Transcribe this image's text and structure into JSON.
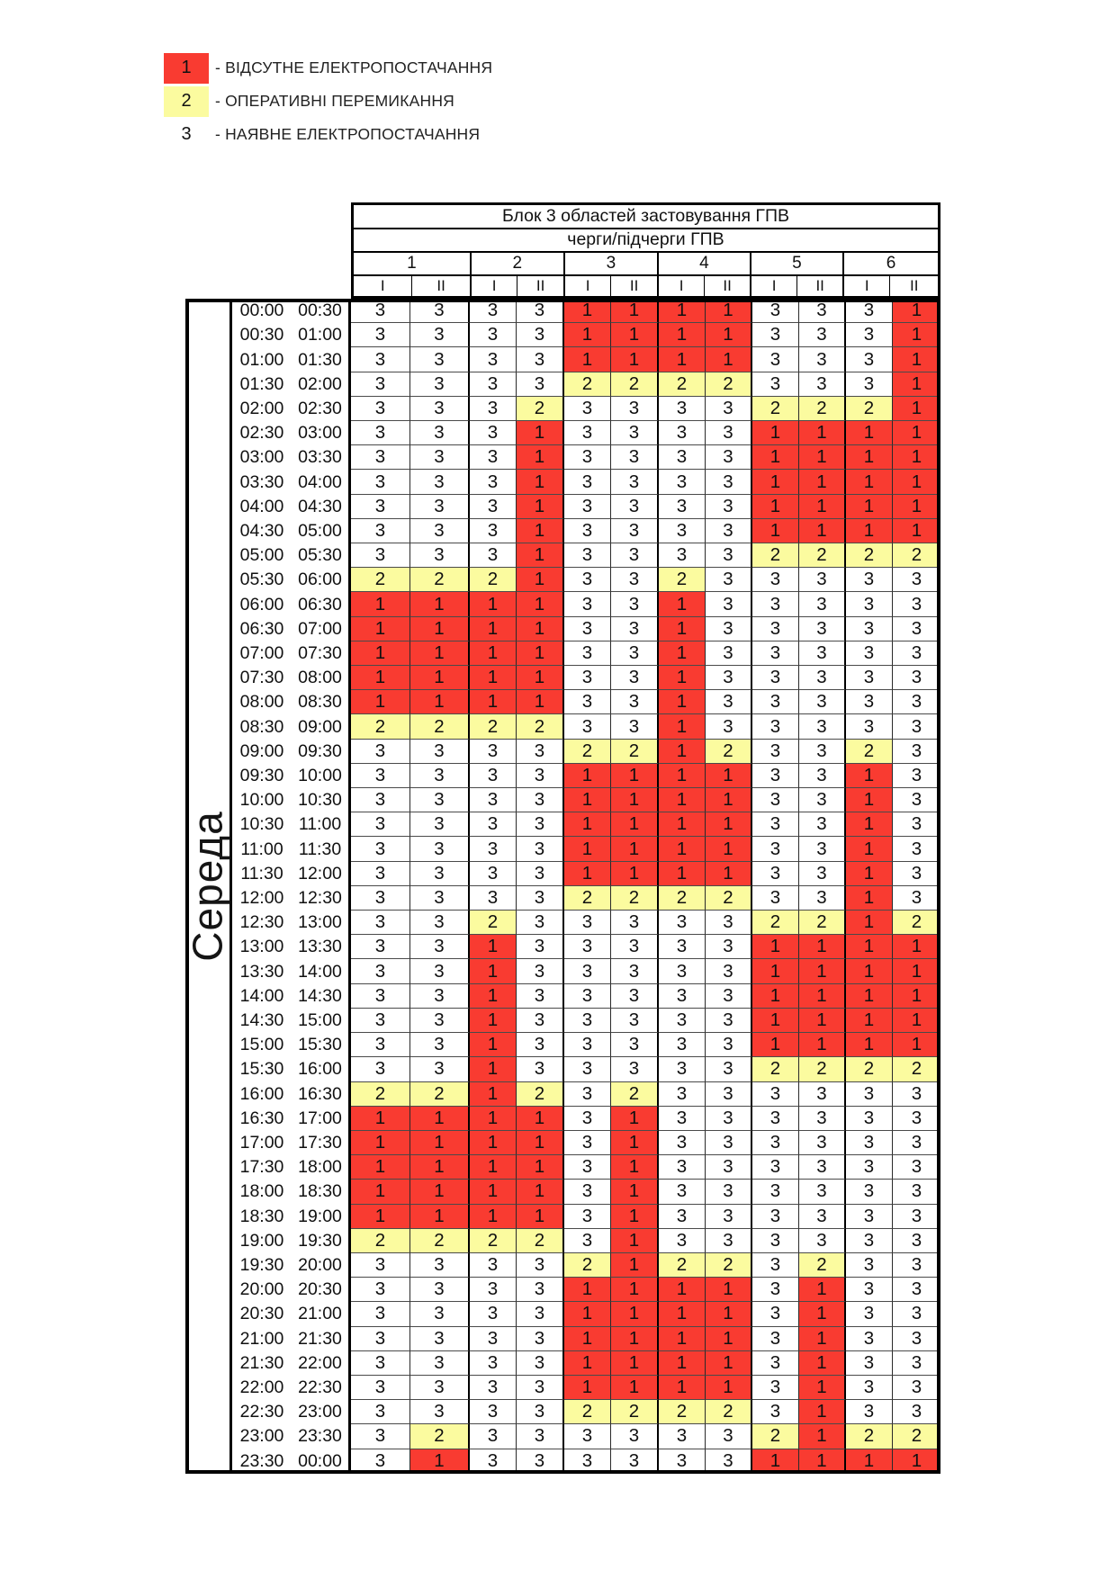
{
  "legend": {
    "items": [
      {
        "code": "1",
        "label": "- ВІДСУТНЕ ЕЛЕКТРОПОСТАЧАННЯ",
        "color": "#f93b31"
      },
      {
        "code": "2",
        "label": "- ОПЕРАТИВНІ ПЕРЕМИКАННЯ",
        "color": "#fbfb9f"
      },
      {
        "code": "3",
        "label": "- НАЯВНЕ ЕЛЕКТРОПОСТАЧАННЯ",
        "color": "#ffffff"
      }
    ]
  },
  "table": {
    "title": "Блок 3 областей застовування ГПВ",
    "subtitle": "черги/підчерги ГПВ",
    "day": "Середа",
    "groups": [
      "1",
      "2",
      "3",
      "4",
      "5",
      "6"
    ],
    "subcolumns": [
      "I",
      "II"
    ],
    "status_colors": {
      "1": "#f93b31",
      "2": "#fbfb9f",
      "3": "#ffffff"
    },
    "rows": [
      {
        "start": "00:00",
        "end": "00:30",
        "values": [
          3,
          3,
          3,
          3,
          1,
          1,
          1,
          1,
          3,
          3,
          3,
          1
        ]
      },
      {
        "start": "00:30",
        "end": "01:00",
        "values": [
          3,
          3,
          3,
          3,
          1,
          1,
          1,
          1,
          3,
          3,
          3,
          1
        ]
      },
      {
        "start": "01:00",
        "end": "01:30",
        "values": [
          3,
          3,
          3,
          3,
          1,
          1,
          1,
          1,
          3,
          3,
          3,
          1
        ]
      },
      {
        "start": "01:30",
        "end": "02:00",
        "values": [
          3,
          3,
          3,
          3,
          2,
          2,
          2,
          2,
          3,
          3,
          3,
          1
        ]
      },
      {
        "start": "02:00",
        "end": "02:30",
        "values": [
          3,
          3,
          3,
          2,
          3,
          3,
          3,
          3,
          2,
          2,
          2,
          1
        ]
      },
      {
        "start": "02:30",
        "end": "03:00",
        "values": [
          3,
          3,
          3,
          1,
          3,
          3,
          3,
          3,
          1,
          1,
          1,
          1
        ]
      },
      {
        "start": "03:00",
        "end": "03:30",
        "values": [
          3,
          3,
          3,
          1,
          3,
          3,
          3,
          3,
          1,
          1,
          1,
          1
        ]
      },
      {
        "start": "03:30",
        "end": "04:00",
        "values": [
          3,
          3,
          3,
          1,
          3,
          3,
          3,
          3,
          1,
          1,
          1,
          1
        ]
      },
      {
        "start": "04:00",
        "end": "04:30",
        "values": [
          3,
          3,
          3,
          1,
          3,
          3,
          3,
          3,
          1,
          1,
          1,
          1
        ]
      },
      {
        "start": "04:30",
        "end": "05:00",
        "values": [
          3,
          3,
          3,
          1,
          3,
          3,
          3,
          3,
          1,
          1,
          1,
          1
        ]
      },
      {
        "start": "05:00",
        "end": "05:30",
        "values": [
          3,
          3,
          3,
          1,
          3,
          3,
          3,
          3,
          2,
          2,
          2,
          2
        ]
      },
      {
        "start": "05:30",
        "end": "06:00",
        "values": [
          2,
          2,
          2,
          1,
          3,
          3,
          2,
          3,
          3,
          3,
          3,
          3
        ]
      },
      {
        "start": "06:00",
        "end": "06:30",
        "values": [
          1,
          1,
          1,
          1,
          3,
          3,
          1,
          3,
          3,
          3,
          3,
          3
        ]
      },
      {
        "start": "06:30",
        "end": "07:00",
        "values": [
          1,
          1,
          1,
          1,
          3,
          3,
          1,
          3,
          3,
          3,
          3,
          3
        ]
      },
      {
        "start": "07:00",
        "end": "07:30",
        "values": [
          1,
          1,
          1,
          1,
          3,
          3,
          1,
          3,
          3,
          3,
          3,
          3
        ]
      },
      {
        "start": "07:30",
        "end": "08:00",
        "values": [
          1,
          1,
          1,
          1,
          3,
          3,
          1,
          3,
          3,
          3,
          3,
          3
        ]
      },
      {
        "start": "08:00",
        "end": "08:30",
        "values": [
          1,
          1,
          1,
          1,
          3,
          3,
          1,
          3,
          3,
          3,
          3,
          3
        ]
      },
      {
        "start": "08:30",
        "end": "09:00",
        "values": [
          2,
          2,
          2,
          2,
          3,
          3,
          1,
          3,
          3,
          3,
          3,
          3
        ]
      },
      {
        "start": "09:00",
        "end": "09:30",
        "values": [
          3,
          3,
          3,
          3,
          2,
          2,
          1,
          2,
          3,
          3,
          2,
          3
        ]
      },
      {
        "start": "09:30",
        "end": "10:00",
        "values": [
          3,
          3,
          3,
          3,
          1,
          1,
          1,
          1,
          3,
          3,
          1,
          3
        ]
      },
      {
        "start": "10:00",
        "end": "10:30",
        "values": [
          3,
          3,
          3,
          3,
          1,
          1,
          1,
          1,
          3,
          3,
          1,
          3
        ]
      },
      {
        "start": "10:30",
        "end": "11:00",
        "values": [
          3,
          3,
          3,
          3,
          1,
          1,
          1,
          1,
          3,
          3,
          1,
          3
        ]
      },
      {
        "start": "11:00",
        "end": "11:30",
        "values": [
          3,
          3,
          3,
          3,
          1,
          1,
          1,
          1,
          3,
          3,
          1,
          3
        ]
      },
      {
        "start": "11:30",
        "end": "12:00",
        "values": [
          3,
          3,
          3,
          3,
          1,
          1,
          1,
          1,
          3,
          3,
          1,
          3
        ]
      },
      {
        "start": "12:00",
        "end": "12:30",
        "values": [
          3,
          3,
          3,
          3,
          2,
          2,
          2,
          2,
          3,
          3,
          1,
          3
        ]
      },
      {
        "start": "12:30",
        "end": "13:00",
        "values": [
          3,
          3,
          2,
          3,
          3,
          3,
          3,
          3,
          2,
          2,
          1,
          2
        ]
      },
      {
        "start": "13:00",
        "end": "13:30",
        "values": [
          3,
          3,
          1,
          3,
          3,
          3,
          3,
          3,
          1,
          1,
          1,
          1
        ]
      },
      {
        "start": "13:30",
        "end": "14:00",
        "values": [
          3,
          3,
          1,
          3,
          3,
          3,
          3,
          3,
          1,
          1,
          1,
          1
        ]
      },
      {
        "start": "14:00",
        "end": "14:30",
        "values": [
          3,
          3,
          1,
          3,
          3,
          3,
          3,
          3,
          1,
          1,
          1,
          1
        ]
      },
      {
        "start": "14:30",
        "end": "15:00",
        "values": [
          3,
          3,
          1,
          3,
          3,
          3,
          3,
          3,
          1,
          1,
          1,
          1
        ]
      },
      {
        "start": "15:00",
        "end": "15:30",
        "values": [
          3,
          3,
          1,
          3,
          3,
          3,
          3,
          3,
          1,
          1,
          1,
          1
        ]
      },
      {
        "start": "15:30",
        "end": "16:00",
        "values": [
          3,
          3,
          1,
          3,
          3,
          3,
          3,
          3,
          2,
          2,
          2,
          2
        ]
      },
      {
        "start": "16:00",
        "end": "16:30",
        "values": [
          2,
          2,
          1,
          2,
          3,
          2,
          3,
          3,
          3,
          3,
          3,
          3
        ]
      },
      {
        "start": "16:30",
        "end": "17:00",
        "values": [
          1,
          1,
          1,
          1,
          3,
          1,
          3,
          3,
          3,
          3,
          3,
          3
        ]
      },
      {
        "start": "17:00",
        "end": "17:30",
        "values": [
          1,
          1,
          1,
          1,
          3,
          1,
          3,
          3,
          3,
          3,
          3,
          3
        ]
      },
      {
        "start": "17:30",
        "end": "18:00",
        "values": [
          1,
          1,
          1,
          1,
          3,
          1,
          3,
          3,
          3,
          3,
          3,
          3
        ]
      },
      {
        "start": "18:00",
        "end": "18:30",
        "values": [
          1,
          1,
          1,
          1,
          3,
          1,
          3,
          3,
          3,
          3,
          3,
          3
        ]
      },
      {
        "start": "18:30",
        "end": "19:00",
        "values": [
          1,
          1,
          1,
          1,
          3,
          1,
          3,
          3,
          3,
          3,
          3,
          3
        ]
      },
      {
        "start": "19:00",
        "end": "19:30",
        "values": [
          2,
          2,
          2,
          2,
          3,
          1,
          3,
          3,
          3,
          3,
          3,
          3
        ]
      },
      {
        "start": "19:30",
        "end": "20:00",
        "values": [
          3,
          3,
          3,
          3,
          2,
          1,
          2,
          2,
          3,
          2,
          3,
          3
        ]
      },
      {
        "start": "20:00",
        "end": "20:30",
        "values": [
          3,
          3,
          3,
          3,
          1,
          1,
          1,
          1,
          3,
          1,
          3,
          3
        ]
      },
      {
        "start": "20:30",
        "end": "21:00",
        "values": [
          3,
          3,
          3,
          3,
          1,
          1,
          1,
          1,
          3,
          1,
          3,
          3
        ]
      },
      {
        "start": "21:00",
        "end": "21:30",
        "values": [
          3,
          3,
          3,
          3,
          1,
          1,
          1,
          1,
          3,
          1,
          3,
          3
        ]
      },
      {
        "start": "21:30",
        "end": "22:00",
        "values": [
          3,
          3,
          3,
          3,
          1,
          1,
          1,
          1,
          3,
          1,
          3,
          3
        ]
      },
      {
        "start": "22:00",
        "end": "22:30",
        "values": [
          3,
          3,
          3,
          3,
          1,
          1,
          1,
          1,
          3,
          1,
          3,
          3
        ]
      },
      {
        "start": "22:30",
        "end": "23:00",
        "values": [
          3,
          3,
          3,
          3,
          2,
          2,
          2,
          2,
          3,
          1,
          3,
          3
        ]
      },
      {
        "start": "23:00",
        "end": "23:30",
        "values": [
          3,
          2,
          3,
          3,
          3,
          3,
          3,
          3,
          2,
          1,
          2,
          2
        ]
      },
      {
        "start": "23:30",
        "end": "00:00",
        "values": [
          3,
          1,
          3,
          3,
          3,
          3,
          3,
          3,
          1,
          1,
          1,
          1
        ]
      }
    ]
  }
}
